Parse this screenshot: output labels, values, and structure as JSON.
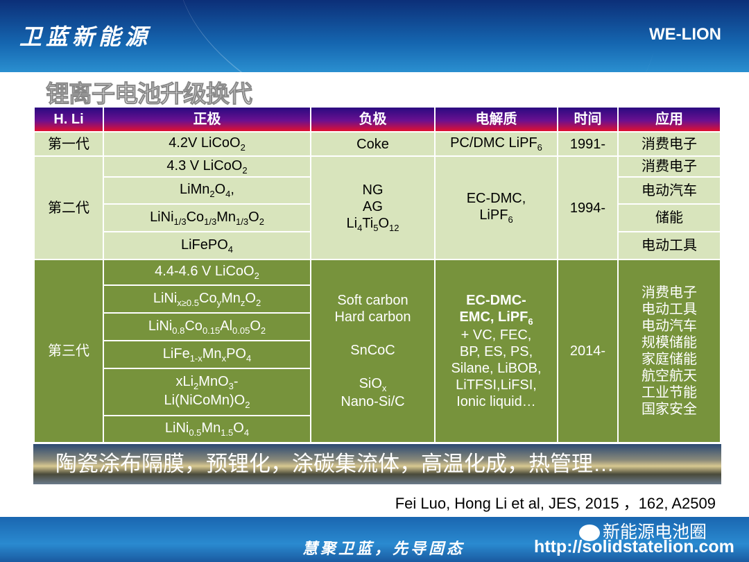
{
  "header": {
    "brand": "卫蓝新能源",
    "logo": "WE-LION"
  },
  "title": "锂离子电池升级换代",
  "table": {
    "headers": [
      "H. Li",
      "正极",
      "负极",
      "电解质",
      "时间",
      "应用"
    ],
    "gen1": {
      "label": "第一代",
      "cathode": "4.2V LiCoO<sub>2</sub>",
      "anode": "Coke",
      "electrolyte": "PC/DMC LiPF<sub>6</sub>",
      "time": "1991-",
      "app": "消费电子"
    },
    "gen2": {
      "label": "第二代",
      "cathodes": [
        "4.3 V LiCoO<sub>2</sub>",
        "LiMn<sub>2</sub>O<sub>4</sub>,",
        "LiNi<sub>1/3</sub>Co<sub>1/3</sub>Mn<sub>1/3</sub>O<sub>2</sub>",
        "LiFePO<sub>4</sub>"
      ],
      "anode": "NG<br>AG<br>Li<sub>4</sub>Ti<sub>5</sub>O<sub>12</sub>",
      "electrolyte": "EC-DMC,<br>LiPF<sub>6</sub>",
      "time": "1994-",
      "apps": [
        "消费电子",
        "电动汽车",
        "储能",
        "电动工具"
      ]
    },
    "gen3": {
      "label": "第三代",
      "cathodes": [
        "4.4-4.6 V LiCoO<sub>2</sub>",
        "LiNi<sub>x≥0.5</sub>Co<sub>y</sub>Mn<sub>z</sub>O<sub>2</sub>",
        "LiNi<sub>0.8</sub>Co<sub>0.15</sub>Al<sub>0.05</sub>O<sub>2</sub>",
        "LiFe<sub>1-x</sub>Mn<sub>x</sub>PO<sub>4</sub>",
        "xLi<sub>2</sub>MnO<sub>3</sub>-<br>Li(NiCoMn)O<sub>2</sub>",
        "LiNi<sub>0.5</sub>Mn<sub>1.5</sub>O<sub>4</sub>"
      ],
      "anode": "Soft carbon<br>Hard carbon<br><br>SnCoC<br><br>SiO<sub>x</sub><br>Nano-Si/C",
      "electrolyte": "<b>EC-DMC-<br>EMC, LiPF<sub>6</sub></b><br>+ VC, FEC,<br>BP, ES, PS,<br>Silane, LiBOB,<br>LiTFSI,LiFSI,<br>Ionic liquid…",
      "time": "2014-",
      "apps": "消费电子<br>电动工具<br>电动汽车<br>规模储能<br>家庭储能<br>航空航天<br>工业节能<br>国家安全"
    }
  },
  "band": "陶瓷涂布隔膜，预锂化，涂碳集流体，高温化成，热管理…",
  "reference": "Fei Luo, Hong Li et al, JES,  2015 ，162, A2509",
  "footer": {
    "slogan": "慧聚卫蓝，先导固态",
    "wechat": "新能源电池圈",
    "url": "http://solidstatelion.com"
  }
}
